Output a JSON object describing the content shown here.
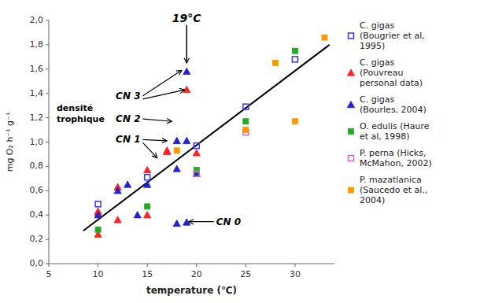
{
  "chart_data": {
    "type": "scatter",
    "xlabel": "temperature (℃)",
    "ylabel": "mg O₂ h⁻¹ g⁻¹",
    "xlim": [
      5,
      34
    ],
    "ylim": [
      0.0,
      2.0
    ],
    "xticks": [
      5,
      10,
      15,
      20,
      25,
      30
    ],
    "yticks": [
      {
        "value": 0.0,
        "label": "0,0"
      },
      {
        "value": 0.2,
        "label": "0,2"
      },
      {
        "value": 0.4,
        "label": "0,4"
      },
      {
        "value": 0.6,
        "label": "0,6"
      },
      {
        "value": 0.8,
        "label": "0,8"
      },
      {
        "value": 1.0,
        "label": "1,0"
      },
      {
        "value": 1.2,
        "label": "1,2"
      },
      {
        "value": 1.4,
        "label": "1,4"
      },
      {
        "value": 1.6,
        "label": "1,6"
      },
      {
        "value": 1.8,
        "label": "1,8"
      },
      {
        "value": 2.0,
        "label": "2,0"
      }
    ],
    "grid": false,
    "legend": "right",
    "series": [
      {
        "type": "line",
        "color": "#000000",
        "line_style": "solid",
        "x": [
          8.5,
          33.5
        ],
        "values": [
          0.27,
          1.8
        ]
      },
      {
        "type": "scatter",
        "name": "C. gigas\n(Bougrier et al,\n1995)",
        "color": "#3333FF",
        "marker": "square-open",
        "x": [
          10,
          15,
          20,
          25,
          30
        ],
        "values": [
          0.49,
          0.71,
          0.97,
          1.29,
          1.68
        ]
      },
      {
        "type": "scatter",
        "name": "C. gigas\n(Pouvreau\npersonal data)",
        "color": "#FF2222",
        "marker": "triangle",
        "x": [
          10,
          10,
          12,
          12,
          15,
          15,
          17,
          17,
          19,
          20,
          10
        ],
        "values": [
          0.42,
          0.43,
          0.63,
          0.36,
          0.77,
          0.4,
          0.92,
          0.93,
          1.43,
          0.91,
          0.24
        ]
      },
      {
        "type": "scatter",
        "name": "C. gigas\n(Bourles, 2004)",
        "color": "#2222CC",
        "marker": "triangle",
        "x": [
          10,
          12,
          13,
          14,
          15,
          18,
          18,
          19,
          19,
          20,
          18,
          19
        ],
        "values": [
          0.4,
          0.6,
          0.65,
          0.4,
          0.65,
          0.78,
          1.01,
          1.01,
          1.58,
          0.74,
          0.33,
          0.34
        ]
      },
      {
        "type": "scatter",
        "name": "O. edulis (Haure\net al, 1998)",
        "color": "#22AA22",
        "marker": "square",
        "x": [
          10,
          15,
          20,
          25,
          30
        ],
        "values": [
          0.28,
          0.47,
          0.77,
          1.17,
          1.75
        ]
      },
      {
        "type": "scatter",
        "name": "P. perna (Hicks,\nMcMahon, 2002)",
        "color": "#CC66CC",
        "marker": "square-open",
        "x": [
          20,
          25
        ],
        "values": [
          0.74,
          1.08
        ]
      },
      {
        "type": "scatter",
        "name": "P. mazatlanica\n(Saucedo et al.,\n2004)",
        "color": "#FF9900",
        "marker": "square",
        "x": [
          18,
          25,
          28,
          30,
          33
        ],
        "values": [
          0.93,
          1.1,
          1.65,
          1.17,
          1.86
        ]
      }
    ],
    "annotations": [
      {
        "text": "19°C",
        "x": 19,
        "y": 1.97,
        "arrows": [
          {
            "x": 19,
            "y": 1.65
          }
        ]
      },
      {
        "text": "CN 0",
        "x": 22.0,
        "y": 0.345,
        "arrows": [
          {
            "x": 19.2,
            "y": 0.345
          }
        ]
      },
      {
        "text": "CN 1",
        "x": 11.8,
        "y": 1.02,
        "arrows": [
          {
            "x": 17.0,
            "y": 1.01
          },
          {
            "x": 16.0,
            "y": 0.87
          }
        ]
      },
      {
        "text": "CN 2",
        "x": 11.8,
        "y": 1.19,
        "arrows": [
          {
            "x": 17.5,
            "y": 1.17
          }
        ]
      },
      {
        "text": "CN 3",
        "x": 11.8,
        "y": 1.38,
        "arrows": [
          {
            "x": 18.5,
            "y": 1.59
          },
          {
            "x": 18.8,
            "y": 1.43
          }
        ]
      },
      {
        "text": "densité\ntrophique",
        "x": 5.8,
        "y": 1.23,
        "arrows": []
      }
    ]
  }
}
